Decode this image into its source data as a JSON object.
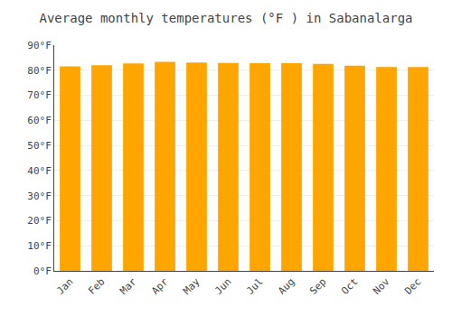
{
  "chart_data": {
    "type": "bar",
    "title": "Average monthly temperatures (°F ) in Sabanalarga",
    "categories": [
      "Jan",
      "Feb",
      "Mar",
      "Apr",
      "May",
      "Jun",
      "Jul",
      "Aug",
      "Sep",
      "Oct",
      "Nov",
      "Dec"
    ],
    "values": [
      81.5,
      82.0,
      82.7,
      83.3,
      83.1,
      82.9,
      82.8,
      82.8,
      82.5,
      81.8,
      81.3,
      81.3
    ],
    "color": "#FFA500",
    "ylim": [
      0,
      90
    ],
    "yticks": [
      {
        "value": 0,
        "label": "0°F"
      },
      {
        "value": 10,
        "label": "10°F"
      },
      {
        "value": 20,
        "label": "20°F"
      },
      {
        "value": 30,
        "label": "30°F"
      },
      {
        "value": 40,
        "label": "40°F"
      },
      {
        "value": 50,
        "label": "50°F"
      },
      {
        "value": 60,
        "label": "60°F"
      },
      {
        "value": 70,
        "label": "70°F"
      },
      {
        "value": 80,
        "label": "80°F"
      },
      {
        "value": 90,
        "label": "90°F"
      }
    ],
    "grid": true
  }
}
